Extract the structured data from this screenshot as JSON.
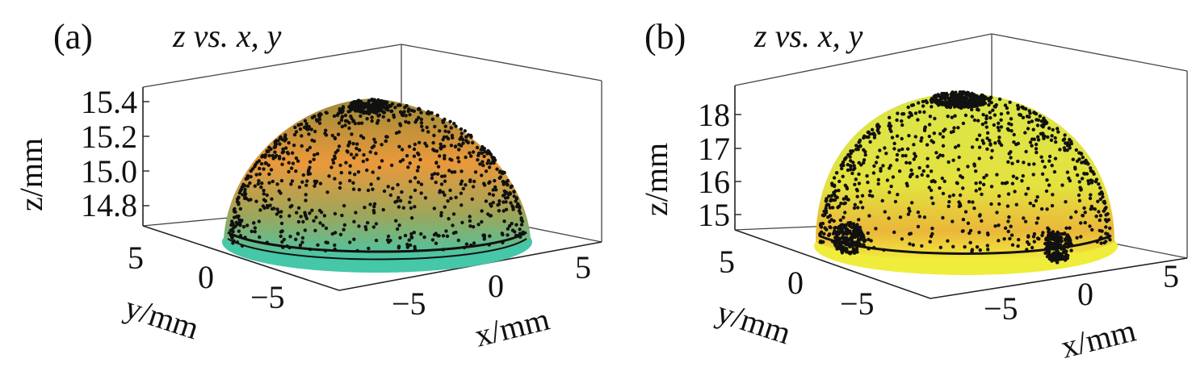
{
  "chart_data": [
    {
      "type": "surface3d",
      "panel_label": "(a)",
      "title": "z vs. x, y",
      "xlabel": "x/mm",
      "ylabel": "y/mm",
      "zlabel": "z/mm",
      "x_ticks": [
        "−5",
        "0",
        "5"
      ],
      "y_ticks": [
        "5",
        "0",
        "−5"
      ],
      "z_ticks": [
        "15.4",
        "15.2",
        "15.0",
        "14.8"
      ],
      "zlim": [
        14.65,
        15.45
      ],
      "surface_colors": {
        "top": "#d9a23a",
        "middle": "#e89a3a",
        "lower": "#b9a552",
        "base": "#48c7a6"
      },
      "marker_color": "#111111"
    },
    {
      "type": "surface3d",
      "panel_label": "(b)",
      "title": "z vs. x, y",
      "xlabel": "x/mm",
      "ylabel": "y/mm",
      "zlabel": "z/mm",
      "x_ticks": [
        "−5",
        "0",
        "5"
      ],
      "y_ticks": [
        "5",
        "0",
        "−5"
      ],
      "z_ticks": [
        "18",
        "17",
        "16",
        "15"
      ],
      "zlim": [
        14.6,
        18.6
      ],
      "surface_colors": {
        "top": "#dde843",
        "middle": "#e7d23d",
        "lower": "#e9ad38",
        "base": "#f0ec3c"
      },
      "marker_color": "#111111"
    }
  ]
}
